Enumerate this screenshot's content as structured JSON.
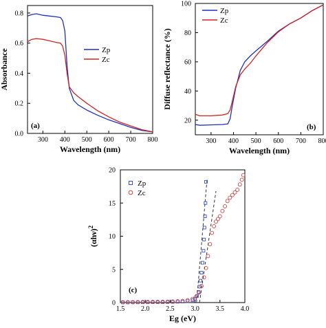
{
  "chart_data": [
    {
      "panel_label": "(a)",
      "type": "line",
      "xlabel": "Wavelength (nm)",
      "ylabel": "Absorbance",
      "xlim": [
        230,
        800
      ],
      "ylim": [
        0,
        0.85
      ],
      "x_ticks": [
        "300",
        "400",
        "500",
        "600",
        "700",
        "800"
      ],
      "x_tick_values": [
        300,
        400,
        500,
        600,
        700,
        800
      ],
      "y_ticks": [
        "0.0",
        "0.2",
        "0.4",
        "0.6",
        "0.8"
      ],
      "y_tick_values": [
        0,
        0.2,
        0.4,
        0.6,
        0.8
      ],
      "legend_position": "right",
      "series": [
        {
          "name": "Zp",
          "color": "#1f2fbf",
          "points": [
            [
              230,
              0.78
            ],
            [
              250,
              0.79
            ],
            [
              270,
              0.795
            ],
            [
              300,
              0.785
            ],
            [
              330,
              0.78
            ],
            [
              360,
              0.775
            ],
            [
              380,
              0.77
            ],
            [
              390,
              0.75
            ],
            [
              400,
              0.68
            ],
            [
              410,
              0.45
            ],
            [
              420,
              0.3
            ],
            [
              440,
              0.22
            ],
            [
              460,
              0.19
            ],
            [
              500,
              0.155
            ],
            [
              550,
              0.12
            ],
            [
              600,
              0.09
            ],
            [
              650,
              0.065
            ],
            [
              700,
              0.04
            ],
            [
              750,
              0.02
            ],
            [
              800,
              0.01
            ]
          ]
        },
        {
          "name": "Zc",
          "color": "#d42020",
          "points": [
            [
              230,
              0.61
            ],
            [
              250,
              0.625
            ],
            [
              270,
              0.63
            ],
            [
              300,
              0.625
            ],
            [
              330,
              0.615
            ],
            [
              360,
              0.605
            ],
            [
              380,
              0.6
            ],
            [
              390,
              0.58
            ],
            [
              400,
              0.52
            ],
            [
              410,
              0.4
            ],
            [
              420,
              0.31
            ],
            [
              440,
              0.27
            ],
            [
              460,
              0.245
            ],
            [
              500,
              0.2
            ],
            [
              550,
              0.15
            ],
            [
              600,
              0.11
            ],
            [
              650,
              0.075
            ],
            [
              700,
              0.05
            ],
            [
              750,
              0.025
            ],
            [
              800,
              0.01
            ]
          ]
        }
      ]
    },
    {
      "panel_label": "(b)",
      "type": "line",
      "xlabel": "Wavelength (nm)",
      "ylabel": "Diffuse reflectance (%)",
      "xlim": [
        230,
        800
      ],
      "ylim": [
        10,
        100
      ],
      "x_ticks": [
        "300",
        "400",
        "500",
        "600",
        "700",
        "800"
      ],
      "x_tick_values": [
        300,
        400,
        500,
        600,
        700,
        800
      ],
      "y_ticks": [
        "20",
        "40",
        "60",
        "80",
        "100"
      ],
      "y_tick_values": [
        20,
        40,
        60,
        80,
        100
      ],
      "legend_position": "top-left",
      "series": [
        {
          "name": "Zp",
          "color": "#1f2fbf",
          "points": [
            [
              230,
              17
            ],
            [
              250,
              16.5
            ],
            [
              300,
              16.8
            ],
            [
              350,
              17
            ],
            [
              375,
              17.5
            ],
            [
              385,
              21
            ],
            [
              395,
              30
            ],
            [
              410,
              42
            ],
            [
              430,
              54
            ],
            [
              450,
              60
            ],
            [
              475,
              64
            ],
            [
              500,
              67.5
            ],
            [
              550,
              74
            ],
            [
              600,
              81
            ],
            [
              650,
              86
            ],
            [
              700,
              90
            ],
            [
              750,
              95
            ],
            [
              800,
              99
            ]
          ]
        },
        {
          "name": "Zc",
          "color": "#d42020",
          "points": [
            [
              230,
              24
            ],
            [
              250,
              23
            ],
            [
              300,
              23
            ],
            [
              350,
              23.5
            ],
            [
              375,
              24.5
            ],
            [
              385,
              27
            ],
            [
              395,
              33
            ],
            [
              410,
              43
            ],
            [
              430,
              51
            ],
            [
              450,
              55
            ],
            [
              475,
              59
            ],
            [
              500,
              64
            ],
            [
              550,
              73
            ],
            [
              600,
              80.5
            ],
            [
              650,
              86
            ],
            [
              700,
              90
            ],
            [
              750,
              95
            ],
            [
              800,
              99
            ]
          ]
        }
      ]
    },
    {
      "panel_label": "(c)",
      "type": "scatter",
      "xlabel": "Eg (eV)",
      "ylabel_base": "(αhν)",
      "ylabel_sup": "2",
      "xlim": [
        1.5,
        4.0
      ],
      "ylim": [
        0,
        20
      ],
      "x_ticks": [
        "1.5",
        "2.0",
        "2.5",
        "3.0",
        "3.5",
        "4.0"
      ],
      "x_tick_values": [
        1.5,
        2.0,
        2.5,
        3.0,
        3.5,
        4.0
      ],
      "y_ticks": [
        "0",
        "5",
        "10",
        "15",
        "20"
      ],
      "y_tick_values": [
        0,
        5,
        10,
        15,
        20
      ],
      "legend_position": "top-left",
      "series": [
        {
          "name": "Zp",
          "color": "#3a4fd0",
          "marker": "square",
          "points": [
            [
              1.55,
              0.02
            ],
            [
              1.65,
              0.02
            ],
            [
              1.75,
              0.03
            ],
            [
              1.85,
              0.03
            ],
            [
              1.95,
              0.04
            ],
            [
              2.05,
              0.04
            ],
            [
              2.15,
              0.05
            ],
            [
              2.25,
              0.06
            ],
            [
              2.35,
              0.07
            ],
            [
              2.45,
              0.08
            ],
            [
              2.55,
              0.1
            ],
            [
              2.65,
              0.12
            ],
            [
              2.75,
              0.15
            ],
            [
              2.85,
              0.22
            ],
            [
              2.95,
              0.35
            ],
            [
              3.0,
              0.6
            ],
            [
              3.04,
              1.0
            ],
            [
              3.07,
              1.6
            ],
            [
              3.09,
              2.4
            ],
            [
              3.11,
              3.3
            ],
            [
              3.13,
              4.5
            ],
            [
              3.15,
              6.0
            ],
            [
              3.17,
              7.8
            ],
            [
              3.18,
              9.5
            ],
            [
              3.19,
              11.3
            ],
            [
              3.2,
              13.0
            ],
            [
              3.21,
              15.0
            ],
            [
              3.22,
              18.2
            ]
          ]
        },
        {
          "name": "Zc",
          "color": "#d04040",
          "marker": "circle",
          "points": [
            [
              1.55,
              0.05
            ],
            [
              1.65,
              0.06
            ],
            [
              1.75,
              0.06
            ],
            [
              1.85,
              0.07
            ],
            [
              1.95,
              0.08
            ],
            [
              2.05,
              0.09
            ],
            [
              2.15,
              0.1
            ],
            [
              2.25,
              0.11
            ],
            [
              2.35,
              0.12
            ],
            [
              2.45,
              0.14
            ],
            [
              2.55,
              0.16
            ],
            [
              2.65,
              0.2
            ],
            [
              2.75,
              0.25
            ],
            [
              2.85,
              0.35
            ],
            [
              2.95,
              0.55
            ],
            [
              3.02,
              0.9
            ],
            [
              3.08,
              1.5
            ],
            [
              3.13,
              2.5
            ],
            [
              3.18,
              3.8
            ],
            [
              3.22,
              5.2
            ],
            [
              3.26,
              7.0
            ],
            [
              3.3,
              8.8
            ],
            [
              3.34,
              10.5
            ],
            [
              3.38,
              11.5
            ],
            [
              3.42,
              12.2
            ],
            [
              3.46,
              12.6
            ],
            [
              3.5,
              13.0
            ],
            [
              3.55,
              13.8
            ],
            [
              3.6,
              14.5
            ],
            [
              3.65,
              15.3
            ],
            [
              3.7,
              15.8
            ],
            [
              3.75,
              16.2
            ],
            [
              3.8,
              16.6
            ],
            [
              3.85,
              17.0
            ],
            [
              3.9,
              17.8
            ],
            [
              3.94,
              18.5
            ],
            [
              3.97,
              19.2
            ]
          ]
        }
      ],
      "fit_lines": [
        {
          "series": "Zp",
          "x": [
            3.03,
            3.24
          ],
          "y": [
            0,
            18.5
          ]
        },
        {
          "series": "Zc",
          "x": [
            3.09,
            3.42
          ],
          "y": [
            0,
            16.8
          ]
        }
      ]
    }
  ]
}
